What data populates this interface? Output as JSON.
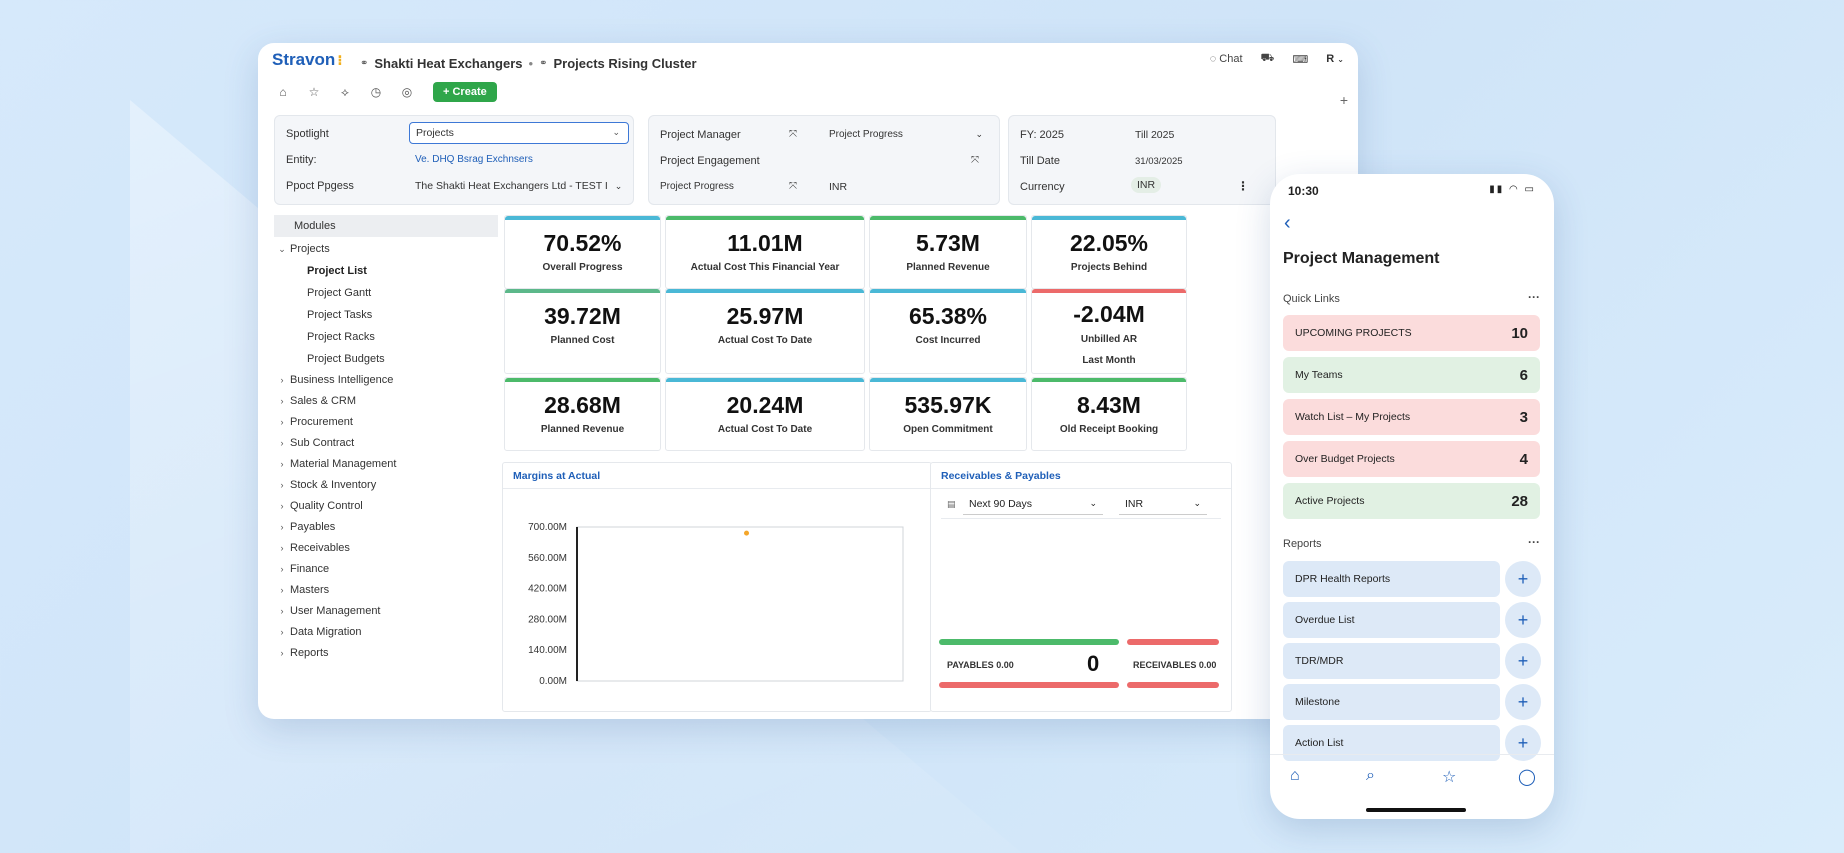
{
  "app": {
    "logo": "Stravon",
    "breadcrumb": [
      "Shakti Heat Exchangers",
      "Projects Rising Cluster"
    ],
    "chat_label": "Chat",
    "user_initial": "R",
    "create_label": "+ Create"
  },
  "filters": {
    "spotlight_label": "Spotlight",
    "spotlight_value": "Projects",
    "entity_label": "Entity:",
    "entity_value": "Ve. DHQ Bsrag Exchnsers",
    "progress_label": "Ppoct Ppgess",
    "progress_value": "The Shakti Heat Exchangers Ltd - TEST I",
    "manager_label": "Project Manager",
    "manager_value": "Project Progress",
    "engagement_label": "Project Engagement",
    "progress2_label": "Project Progress",
    "progress2_value": "INR",
    "fy_label": "FY: 2025",
    "fy_value": "Till 2025",
    "tilldate_label": "Till Date",
    "tilldate_value": "31/03/2025",
    "currency_label": "Currency",
    "currency_value": "INR"
  },
  "sidebar": {
    "modules_label": "Modules",
    "projects_label": "Projects",
    "project_subitems": [
      "Project List",
      "Project Gantt",
      "Project Tasks",
      "Project Racks",
      "Project Budgets"
    ],
    "items": [
      "Business Intelligence",
      "Sales & CRM",
      "Procurement",
      "Sub Contract",
      "Material Management",
      "Stock & Inventory",
      "Quality Control",
      "Payables",
      "Receivables",
      "Finance",
      "Masters",
      "User Management",
      "Data Migration",
      "Reports"
    ]
  },
  "kpis": [
    {
      "value": "70.52%",
      "label": "Overall Progress",
      "color": "#4ab8d6"
    },
    {
      "value": "11.01M",
      "label": "Actual Cost This Financial Year",
      "color": "#4cba6a"
    },
    {
      "value": "5.73M",
      "label": "Planned Revenue",
      "color": "#4cba6a"
    },
    {
      "value": "22.05%",
      "label": "Projects Behind",
      "color": "#4ab8d6"
    },
    {
      "value": "39.72M",
      "label": "Planned Cost",
      "color": "#5cb88a"
    },
    {
      "value": "25.97M",
      "label": "Actual Cost To Date",
      "color": "#4ab8d6"
    },
    {
      "value": "65.38%",
      "label": "Cost Incurred",
      "color": "#4ab8d6"
    },
    {
      "value": "-2.04M",
      "label": "Unbilled AR",
      "label2": "Last Month",
      "color": "#ec6a6a"
    },
    {
      "value": "28.68M",
      "label": "Planned Revenue",
      "color": "#4cba6a"
    },
    {
      "value": "20.24M",
      "label": "Actual Cost To Date",
      "color": "#4ab8d6"
    },
    {
      "value": "535.97K",
      "label": "Open Commitment",
      "color": "#4ab8d6"
    },
    {
      "value": "8.43M",
      "label": "Old Receipt Booking",
      "color": "#4cba6a"
    }
  ],
  "margins_panel": {
    "title": "Margins at Actual"
  },
  "chart_data": {
    "type": "scatter",
    "title": "Margins at Actual",
    "ytick_labels": [
      "700.00M",
      "560.00M",
      "420.00M",
      "280.00M",
      "140.00M",
      "0.00M"
    ],
    "ylim": [
      0,
      700
    ],
    "xlim": [
      0,
      1
    ],
    "points": [
      {
        "x": 0.52,
        "y": 672
      }
    ],
    "point_color": "#f4a62a",
    "grid": false
  },
  "receivables_panel": {
    "title": "Receivables & Payables",
    "range_value": "Next 90 Days",
    "currency_value": "INR",
    "payables_label": "PAYABLES 0.00",
    "center_value": "0",
    "receivables_label": "RECEIVABLES 0.00"
  },
  "phone": {
    "time": "10:30",
    "title": "Project Management",
    "quick_links_label": "Quick Links",
    "quick_links": [
      {
        "label": "UPCOMING PROJECTS",
        "count": "10",
        "color": "#fbdcdc"
      },
      {
        "label": "My Teams",
        "count": "6",
        "color": "#e1f1e3"
      },
      {
        "label": "Watch List – My Projects",
        "count": "3",
        "color": "#fbdcdc"
      },
      {
        "label": "Over Budget Projects",
        "count": "4",
        "color": "#fbdcdc"
      },
      {
        "label": "Active Projects",
        "count": "28",
        "color": "#e1f1e3"
      }
    ],
    "reports_label": "Reports",
    "reports": [
      "DPR Health Reports",
      "Overdue List",
      "TDR/MDR",
      "Milestone",
      "Action List"
    ]
  }
}
